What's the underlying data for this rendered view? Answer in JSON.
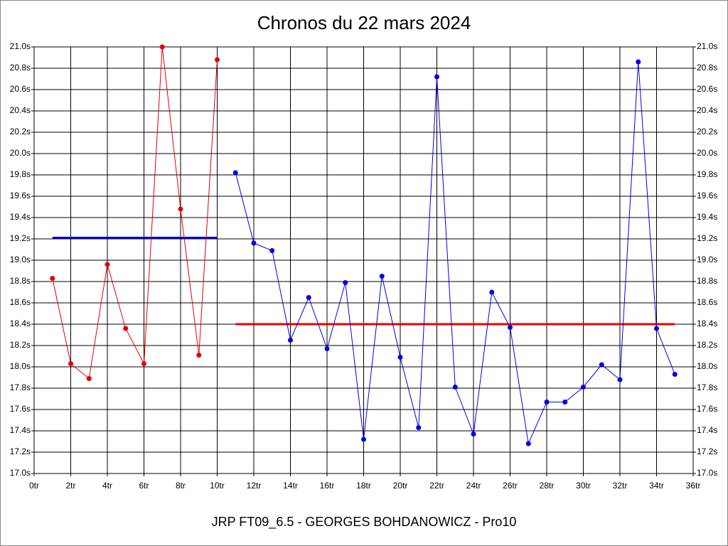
{
  "chart_data": {
    "type": "line",
    "title": "Chronos du 22 mars 2024",
    "x_label": "JRP FT09_6.5 - GEORGES BOHDANOWICZ - Pro10",
    "xlim": [
      0,
      36
    ],
    "xticks": [
      {
        "value": 0,
        "label": "0tr"
      },
      {
        "value": 2,
        "label": "2tr"
      },
      {
        "value": 4,
        "label": "4tr"
      },
      {
        "value": 6,
        "label": "6tr"
      },
      {
        "value": 8,
        "label": "8tr"
      },
      {
        "value": 10,
        "label": "10tr"
      },
      {
        "value": 12,
        "label": "12tr"
      },
      {
        "value": 14,
        "label": "14tr"
      },
      {
        "value": 16,
        "label": "16tr"
      },
      {
        "value": 18,
        "label": "18tr"
      },
      {
        "value": 20,
        "label": "20tr"
      },
      {
        "value": 22,
        "label": "22tr"
      },
      {
        "value": 24,
        "label": "24tr"
      },
      {
        "value": 26,
        "label": "26tr"
      },
      {
        "value": 28,
        "label": "28tr"
      },
      {
        "value": 30,
        "label": "30tr"
      },
      {
        "value": 32,
        "label": "32tr"
      },
      {
        "value": 34,
        "label": "34tr"
      },
      {
        "value": 36,
        "label": "36tr"
      }
    ],
    "ylim": [
      17.0,
      21.0
    ],
    "yticks": [
      {
        "value": 17.0,
        "label": "17.0s"
      },
      {
        "value": 17.2,
        "label": "17.2s"
      },
      {
        "value": 17.4,
        "label": "17.4s"
      },
      {
        "value": 17.6,
        "label": "17.6s"
      },
      {
        "value": 17.8,
        "label": "17.8s"
      },
      {
        "value": 18.0,
        "label": "18.0s"
      },
      {
        "value": 18.2,
        "label": "18.2s"
      },
      {
        "value": 18.4,
        "label": "18.4s"
      },
      {
        "value": 18.6,
        "label": "18.6s"
      },
      {
        "value": 18.8,
        "label": "18.8s"
      },
      {
        "value": 19.0,
        "label": "19.0s"
      },
      {
        "value": 19.2,
        "label": "19.2s"
      },
      {
        "value": 19.4,
        "label": "19.4s"
      },
      {
        "value": 19.6,
        "label": "19.6s"
      },
      {
        "value": 19.8,
        "label": "19.8s"
      },
      {
        "value": 20.0,
        "label": "20.0s"
      },
      {
        "value": 20.2,
        "label": "20.2s"
      },
      {
        "value": 20.4,
        "label": "20.4s"
      },
      {
        "value": 20.6,
        "label": "20.6s"
      },
      {
        "value": 20.8,
        "label": "20.8s"
      },
      {
        "value": 21.0,
        "label": "21.0s"
      }
    ],
    "grid": true,
    "series": [
      {
        "color": "#e00000",
        "x": [
          1,
          2,
          3,
          4,
          5,
          6,
          7,
          8,
          9,
          10
        ],
        "values": [
          18.83,
          18.03,
          17.89,
          18.96,
          18.36,
          18.03,
          21.0,
          19.48,
          18.11,
          20.88
        ]
      },
      {
        "color": "#0000e0",
        "x": [
          11,
          12,
          13,
          14,
          15,
          16,
          17,
          18,
          19,
          20,
          21,
          22,
          23,
          24,
          25,
          26,
          27,
          28,
          29,
          30,
          31,
          32,
          33,
          34,
          35
        ],
        "values": [
          19.82,
          19.16,
          19.09,
          18.25,
          18.65,
          18.17,
          18.79,
          17.32,
          18.85,
          18.09,
          17.43,
          20.72,
          17.81,
          17.37,
          18.7,
          18.37,
          17.28,
          17.67,
          17.67,
          17.81,
          18.02,
          17.88,
          20.86,
          18.36,
          17.93
        ]
      }
    ],
    "reference_lines": [
      {
        "value": 19.21,
        "from": 1,
        "to": 10,
        "color": "#0000cc"
      },
      {
        "value": 18.4,
        "from": 11,
        "to": 35,
        "color": "#ee0000"
      }
    ]
  }
}
